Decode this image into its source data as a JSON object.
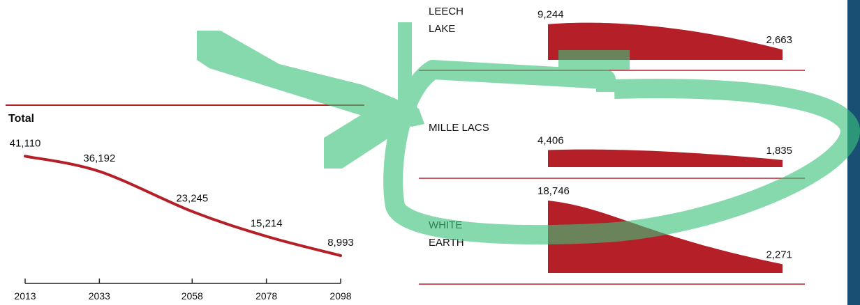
{
  "colors": {
    "series": "#b51f28",
    "annotation": "#3cc27a",
    "edge_bar": "#1a4f74",
    "text": "#111111"
  },
  "chart_data": [
    {
      "type": "line",
      "title": "Total",
      "x": [
        2013,
        2033,
        2058,
        2078,
        2098
      ],
      "xticks": [
        "2013",
        "2033",
        "2058",
        "2078",
        "2098"
      ],
      "series": [
        {
          "values": [
            41110,
            36192,
            23245,
            15214,
            8993
          ],
          "labels": [
            "41,110",
            "36,192",
            "23,245",
            "15,214",
            "8,993"
          ]
        }
      ],
      "xlim": [
        2013,
        2098
      ],
      "ylim": [
        0,
        45000
      ],
      "grid": false
    },
    {
      "type": "area",
      "panels": [
        {
          "name_lines": [
            "LEECH",
            "LAKE"
          ],
          "start_value": 9244,
          "end_value": 2663,
          "start_label": "9,244",
          "end_label": "2,663"
        },
        {
          "name_lines": [
            "MILLE LACS"
          ],
          "start_value": 4406,
          "end_value": 1835,
          "start_label": "4,406",
          "end_label": "1,835"
        },
        {
          "name_lines": [
            "WHITE",
            "EARTH"
          ],
          "start_value": 18746,
          "end_value": 2271,
          "start_label": "18,746",
          "end_label": "2,271"
        }
      ]
    }
  ]
}
